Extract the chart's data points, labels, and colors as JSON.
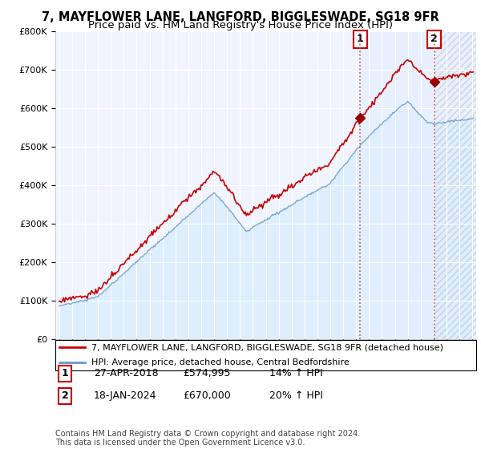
{
  "title": "7, MAYFLOWER LANE, LANGFORD, BIGGLESWADE, SG18 9FR",
  "subtitle": "Price paid vs. HM Land Registry's House Price Index (HPI)",
  "ylim": [
    0,
    800000
  ],
  "yticks": [
    0,
    100000,
    200000,
    300000,
    400000,
    500000,
    600000,
    700000,
    800000
  ],
  "ytick_labels": [
    "£0",
    "£100K",
    "£200K",
    "£300K",
    "£400K",
    "£500K",
    "£600K",
    "£700K",
    "£800K"
  ],
  "xlim_start": 1994.7,
  "xlim_end": 2027.3,
  "house_color": "#cc0000",
  "hpi_color": "#6699cc",
  "hpi_fill_color": "#ddeeff",
  "annotation_color": "#cc3333",
  "background_color": "#ffffff",
  "plot_bg_color": "#f0f4ff",
  "legend_label_house": "7, MAYFLOWER LANE, LANGFORD, BIGGLESWADE, SG18 9FR (detached house)",
  "legend_label_hpi": "HPI: Average price, detached house, Central Bedfordshire",
  "sale1_date": 2018.32,
  "sale1_price": 574995,
  "sale1_label": "1",
  "sale2_date": 2024.05,
  "sale2_price": 670000,
  "sale2_label": "2",
  "footer": "Contains HM Land Registry data © Crown copyright and database right 2024.\nThis data is licensed under the Open Government Licence v3.0.",
  "title_fontsize": 10.5,
  "subtitle_fontsize": 9.5,
  "tick_fontsize": 8,
  "legend_fontsize": 8,
  "footer_fontsize": 7,
  "ann_data": [
    [
      "1",
      "27-APR-2018",
      "£574,995",
      "14% ↑ HPI"
    ],
    [
      "2",
      "18-JAN-2024",
      "£670,000",
      "20% ↑ HPI"
    ]
  ]
}
